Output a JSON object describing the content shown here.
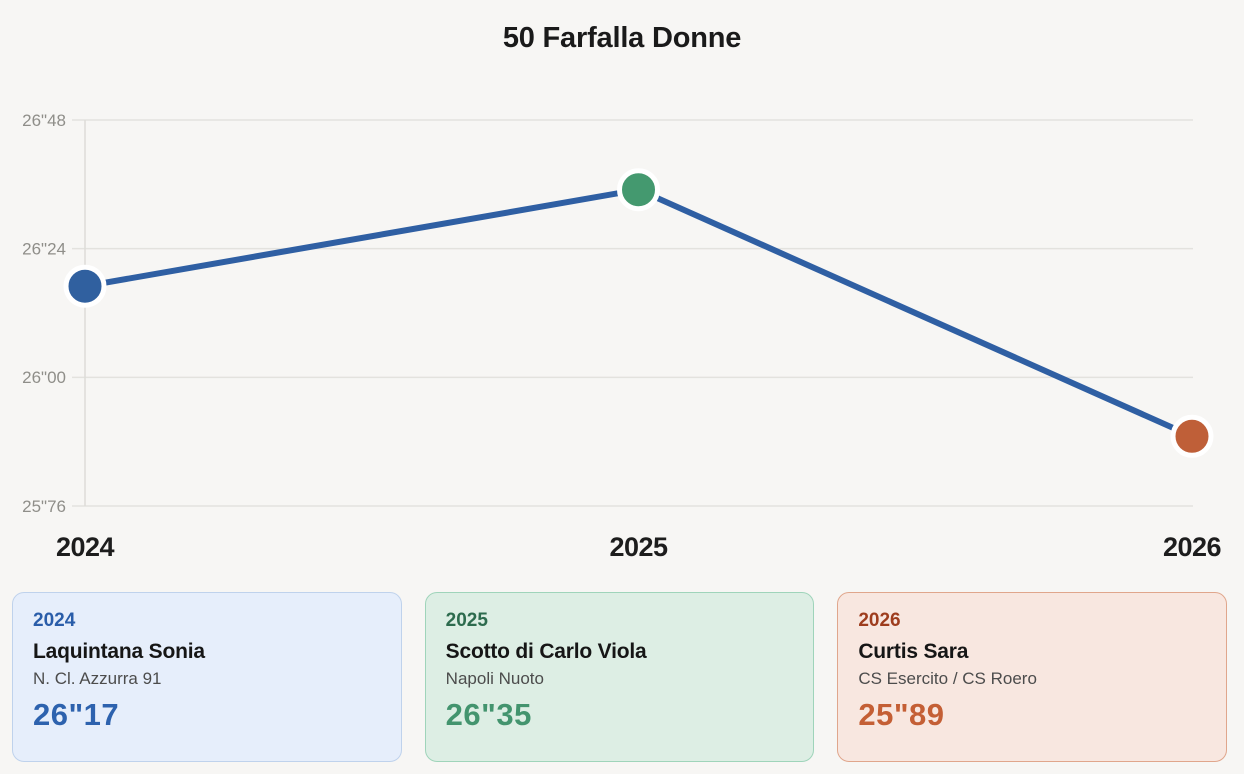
{
  "title": "50 Farfalla Donne",
  "chart_data": {
    "type": "line",
    "title": "50 Farfalla Donne",
    "categories": [
      "2024",
      "2025",
      "2026"
    ],
    "values": [
      26.17,
      26.35,
      25.89
    ],
    "value_labels": [
      "26\"17",
      "26\"35",
      "25\"89"
    ],
    "xlabel": "",
    "ylabel": "",
    "ylim": [
      25.76,
      26.48
    ],
    "yticks": [
      26.48,
      26.24,
      26.0,
      25.76
    ],
    "ytick_labels": [
      "26\"48",
      "26\"24",
      "26\"00",
      "25\"76"
    ],
    "grid": "horizontal",
    "legend": "none",
    "line_color": "#2f5fa3",
    "point_colors": [
      "#30609f",
      "#44996f",
      "#bf5f38"
    ],
    "point_ring_color": "#ffffff",
    "grid_color": "#e3e2de",
    "axis_color": "#dddcd8",
    "ytick_color": "#8f8e89",
    "xtick_color": "#1d1d1d"
  },
  "cards": [
    {
      "year": "2024",
      "athlete": "Laquintana Sonia",
      "club": "N. Cl. Azzurra 91",
      "time": "26\"17",
      "accent": "#2a5da9",
      "time_color": "#2d62ae",
      "bg": "#e6eefb",
      "border": "#bfd2ec"
    },
    {
      "year": "2025",
      "athlete": "Scotto di Carlo Viola",
      "club": "Napoli Nuoto",
      "time": "26\"35",
      "accent": "#2d6b4e",
      "time_color": "#43946e",
      "bg": "#ddeee4",
      "border": "#9fd4ba",
      "club_color": "#4c4c4c"
    },
    {
      "year": "2026",
      "athlete": "Curtis Sara",
      "club": "CS Esercito / CS Roero",
      "time": "25\"89",
      "accent": "#9e3d1e",
      "time_color": "#c45f35",
      "bg": "#f8e7e0",
      "border": "#e0a68c"
    }
  ]
}
